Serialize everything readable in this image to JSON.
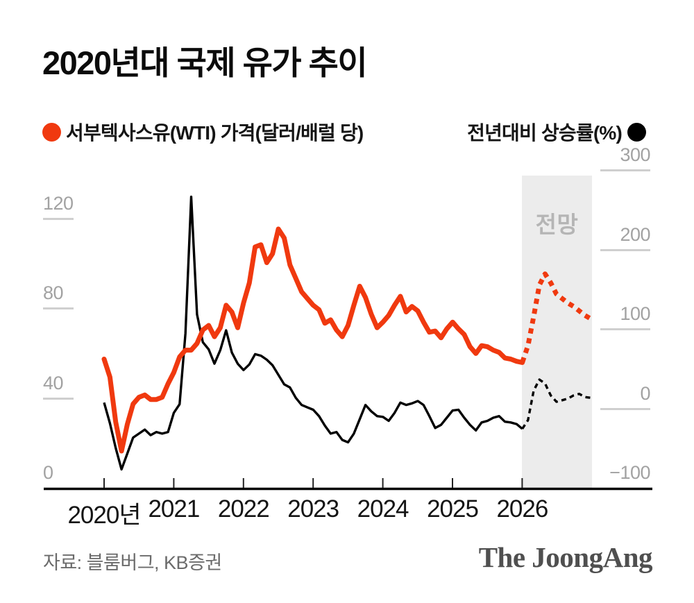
{
  "title": "2020년대 국제 유가 추이",
  "legend": {
    "wti_label": "서부텍사스유(WTI) 가격(달러/배럴 당)",
    "yoy_label": "전년대비 상승률(%)"
  },
  "colors": {
    "wti_red": "#f0390f",
    "yoy_black": "#000000",
    "forecast_band": "#ececec",
    "forecast_label_gray": "#b5b5b5",
    "axis_tick_label": "#a2a2a2",
    "tick_underline": "#cfcfcf",
    "axis_line": "#000000",
    "year_label": "#141414",
    "source_gray": "#6b6b6b",
    "logo_gray": "#4f4f4f"
  },
  "chart_data": {
    "type": "line",
    "title": "2020년대 국제 유가 추이",
    "x_axis": {
      "tick_labels": [
        "2020년",
        "2021",
        "2022",
        "2023",
        "2024",
        "2025",
        "2026"
      ],
      "start": "2020-01",
      "end": "2026-12",
      "interval": "month",
      "gridlines": false
    },
    "left_axis": {
      "label": "서부텍사스유(WTI) 가격(달러/배럴 당)",
      "ticks": [
        120,
        80,
        40,
        0
      ],
      "range": [
        0,
        130
      ]
    },
    "right_axis": {
      "label": "전년대비 상승률(%)",
      "ticks": [
        300,
        200,
        100,
        0,
        -100
      ],
      "range": [
        -100,
        320
      ]
    },
    "forecast": {
      "label": "전망",
      "start": "2026-01",
      "end": "2026-12"
    },
    "series": [
      {
        "name": "서부텍사스유(WTI) 가격(달러/배럴 당)",
        "axis": "left",
        "unit": "USD/barrel",
        "color": "#f0390f",
        "style_actual": "solid",
        "style_forecast": "dashed",
        "monthly_actual": [
          58,
          50,
          30,
          17,
          29,
          38,
          41,
          42,
          40,
          40,
          41,
          47,
          52,
          59,
          62,
          62,
          65,
          71,
          73,
          68,
          72,
          82,
          79,
          72,
          83,
          92,
          108,
          109,
          101,
          105,
          116,
          112,
          100,
          94,
          88,
          85,
          82,
          80,
          74,
          75.5,
          71,
          68,
          73,
          82,
          90.5,
          85.5,
          78,
          72,
          74.5,
          77.5,
          82,
          86,
          79,
          81.5,
          79.5,
          74.5,
          70,
          70.5,
          67.5,
          71.5,
          74.5,
          71.5,
          69,
          63.5,
          60.5,
          64,
          63.5,
          62,
          61,
          58.5,
          58,
          57,
          56.5
        ],
        "monthly_forecast": [
          56.5,
          64,
          77,
          91,
          96,
          92,
          87,
          85,
          83,
          81.5,
          79.5,
          77.5,
          76
        ]
      },
      {
        "name": "전년대비 상승률(%)",
        "axis": "right",
        "unit": "%",
        "color": "#000000",
        "style_actual": "solid",
        "style_forecast": "dashed",
        "monthly_actual": [
          9,
          -17,
          -48,
          -75,
          -55,
          -35,
          -30,
          -25,
          -32,
          -28,
          -30,
          -28,
          -4,
          7,
          96,
          268,
          120,
          85,
          76,
          58,
          75,
          100,
          72,
          58,
          50,
          57,
          70,
          68,
          63,
          56,
          44,
          32,
          28,
          15,
          6,
          3,
          0,
          -8,
          -20,
          -30,
          -28,
          -38,
          -41,
          -30,
          -12,
          6,
          -2,
          -8,
          -9,
          -14,
          -4,
          9,
          6,
          8,
          11,
          6,
          -8,
          -23,
          -19,
          -10,
          -1,
          0,
          -10,
          -19,
          -26,
          -16,
          -14,
          -10,
          -8,
          -15,
          -16,
          -18,
          -24
        ],
        "monthly_forecast": [
          -24,
          -13,
          24,
          38,
          33,
          18,
          10,
          12,
          14,
          18,
          20,
          16,
          15
        ]
      }
    ]
  },
  "footer": {
    "source": "자료: 블룸버그, KB증권",
    "logo": "The JoongAng"
  }
}
